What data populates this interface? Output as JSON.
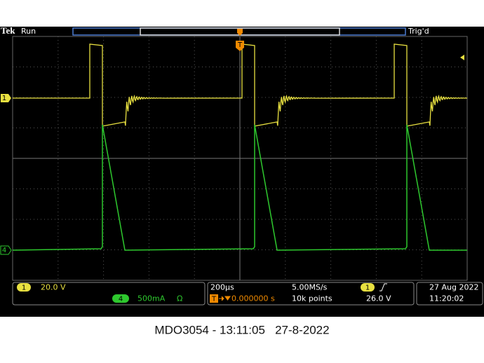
{
  "header": {
    "brand": "Tek",
    "status": "Run",
    "trigger_status": "Trig'd"
  },
  "markers": {
    "channel_1": "1",
    "channel_4": "4",
    "trigger": "T"
  },
  "readouts": {
    "channel_1": {
      "badge": "1",
      "scale": "20.0 V"
    },
    "channel_4": {
      "badge": "4",
      "scale": "500mA",
      "termination": "Ω"
    },
    "timebase": {
      "scale": "200µs",
      "sample_rate": "5.00MS/s",
      "trigger_badge": "T",
      "position": "0.000000 s",
      "record_length": "10k points"
    },
    "trigger": {
      "source": "1",
      "level": "26.0 V"
    },
    "clock": {
      "date": "27 Aug 2022",
      "time": "11:20:02"
    }
  },
  "caption": "MDO3054 - 13:11:05   27-8-2022"
}
